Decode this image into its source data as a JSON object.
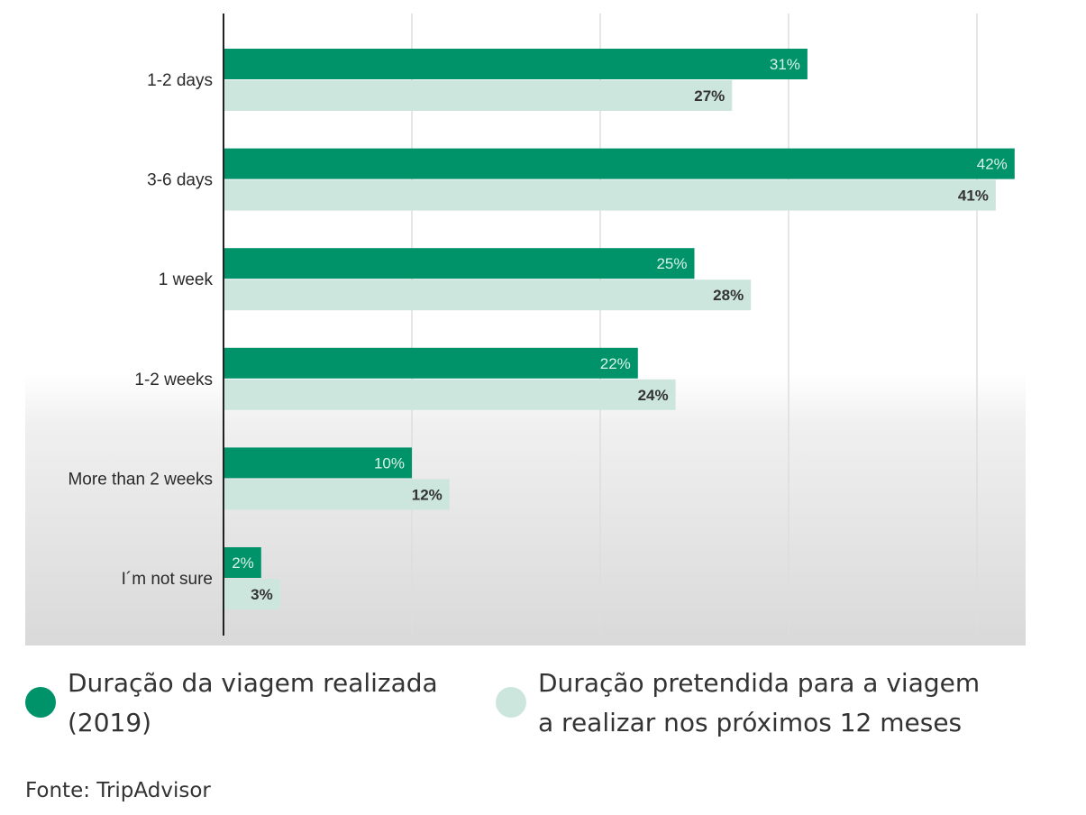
{
  "chart_data": {
    "type": "bar",
    "orientation": "horizontal",
    "categories": [
      "1-2 days",
      "3-6 days",
      "1 week",
      "1-2 weeks",
      "More than 2 weeks",
      "I´m not sure"
    ],
    "series": [
      {
        "name": "Duração da viagem realizada (2019)",
        "values": [
          31,
          42,
          25,
          22,
          10,
          2
        ],
        "labels": [
          "31%",
          "42%",
          "25%",
          "22%",
          "10%",
          "2%"
        ],
        "color": "#00936a"
      },
      {
        "name": "Duração pretendida para a viagem a realizar nos próximos 12 meses",
        "values": [
          27,
          41,
          28,
          24,
          12,
          3
        ],
        "labels": [
          "27%",
          "41%",
          "28%",
          "24%",
          "12%",
          "3%"
        ],
        "color": "#cde6dd"
      }
    ],
    "xlim": [
      0,
      42
    ],
    "grid": true,
    "legend_position": "bottom"
  },
  "legend": {
    "items": [
      {
        "line1": "Duração da viagem realizada",
        "line2": "(2019)",
        "color": "#00936a"
      },
      {
        "line1": "Duração pretendida para a viagem",
        "line2": "a realizar nos próximos 12 meses",
        "color": "#cde6dd"
      }
    ]
  },
  "source": "Fonte: TripAdvisor",
  "colors": {
    "grid": "#dddddd",
    "axis": "#222222",
    "label_on_dark": "#d9f2e7",
    "label_on_light": "#333333"
  }
}
